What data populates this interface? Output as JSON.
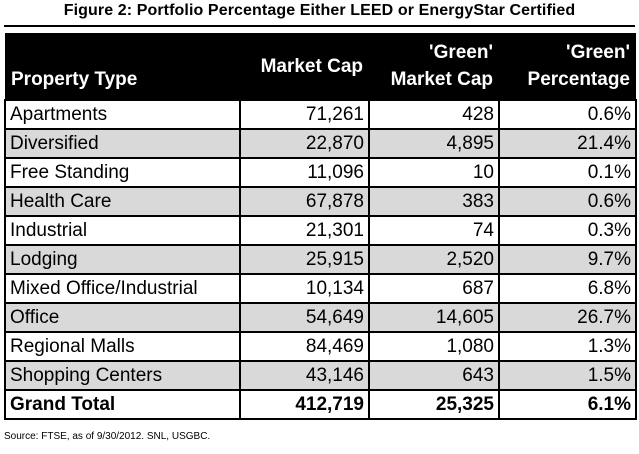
{
  "title": "Figure 2: Portfolio Percentage Either LEED or EnergyStar Certified",
  "headers": {
    "property_type": "Property Type",
    "market_cap": "Market Cap",
    "green_market_cap": "'Green' Market Cap",
    "green_percentage": "'Green' Percentage"
  },
  "rows": [
    {
      "type": "Apartments",
      "market_cap": "71,261",
      "green_market_cap": "428",
      "green_pct": "0.6%"
    },
    {
      "type": "Diversified",
      "market_cap": "22,870",
      "green_market_cap": "4,895",
      "green_pct": "21.4%"
    },
    {
      "type": "Free Standing",
      "market_cap": "11,096",
      "green_market_cap": "10",
      "green_pct": "0.1%"
    },
    {
      "type": "Health Care",
      "market_cap": "67,878",
      "green_market_cap": "383",
      "green_pct": "0.6%"
    },
    {
      "type": "Industrial",
      "market_cap": "21,301",
      "green_market_cap": "74",
      "green_pct": "0.3%"
    },
    {
      "type": "Lodging",
      "market_cap": "25,915",
      "green_market_cap": "2,520",
      "green_pct": "9.7%"
    },
    {
      "type": "Mixed Office/Industrial",
      "market_cap": "10,134",
      "green_market_cap": "687",
      "green_pct": "6.8%"
    },
    {
      "type": "Office",
      "market_cap": "54,649",
      "green_market_cap": "14,605",
      "green_pct": "26.7%"
    },
    {
      "type": "Regional Malls",
      "market_cap": "84,469",
      "green_market_cap": "1,080",
      "green_pct": "1.3%"
    },
    {
      "type": "Shopping Centers",
      "market_cap": "43,146",
      "green_market_cap": "643",
      "green_pct": "1.5%"
    }
  ],
  "total": {
    "type": "Grand Total",
    "market_cap": "412,719",
    "green_market_cap": "25,325",
    "green_pct": "6.1%"
  },
  "source": "Source: FTSE, as of 9/30/2012. SNL, USGBC.",
  "colors": {
    "header_bg": "#000000",
    "header_text": "#ffffff",
    "alt_row": "#d9d9d9"
  }
}
